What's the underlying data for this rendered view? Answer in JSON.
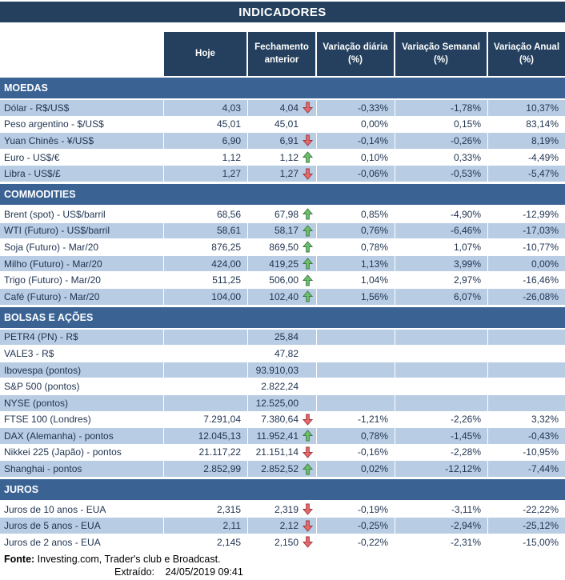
{
  "title": "INDICADORES",
  "columns": {
    "today": "Hoje",
    "prev": "Fechamento anterior",
    "daily": "Variação diária (%)",
    "weekly": "Variação Semanal (%)",
    "annual": "Variação Anual (%)"
  },
  "colors": {
    "header_navy": "#24405E",
    "section_blue": "#3A6394",
    "row_light_blue": "#B8CCE4",
    "up_green": "#6CBF6F",
    "up_green_border": "#3E7A40",
    "down_red": "#E4696D",
    "down_red_border": "#9C3A3C"
  },
  "sections": [
    {
      "name": "MOEDAS",
      "rows": [
        {
          "label": "Dólar - R$/US$",
          "today": "4,03",
          "prev": "4,04",
          "arrow": "down",
          "daily": "-0,33%",
          "weekly": "-1,78%",
          "annual": "10,37%"
        },
        {
          "label": "Peso argentino - $/US$",
          "today": "45,01",
          "prev": "45,01",
          "arrow": "none",
          "daily": "0,00%",
          "weekly": "0,15%",
          "annual": "83,14%"
        },
        {
          "label": "Yuan Chinês - ¥/US$",
          "today": "6,90",
          "prev": "6,91",
          "arrow": "down",
          "daily": "-0,14%",
          "weekly": "-0,26%",
          "annual": "8,19%"
        },
        {
          "label": "Euro - US$/€",
          "today": "1,12",
          "prev": "1,12",
          "arrow": "up",
          "daily": "0,10%",
          "weekly": "0,33%",
          "annual": "-4,49%"
        },
        {
          "label": "Libra - US$/£",
          "today": "1,27",
          "prev": "1,27",
          "arrow": "down",
          "daily": "-0,06%",
          "weekly": "-0,53%",
          "annual": "-5,47%"
        }
      ]
    },
    {
      "name": "COMMODITIES",
      "rows": [
        {
          "label": "Brent (spot) - US$/barril",
          "today": "68,56",
          "prev": "67,98",
          "arrow": "up",
          "daily": "0,85%",
          "weekly": "-4,90%",
          "annual": "-12,99%"
        },
        {
          "label": "WTI (Futuro) - US$/barril",
          "today": "58,61",
          "prev": "58,17",
          "arrow": "up",
          "daily": "0,76%",
          "weekly": "-6,46%",
          "annual": "-17,03%"
        },
        {
          "label": "Soja (Futuro) - Mar/20",
          "today": "876,25",
          "prev": "869,50",
          "arrow": "up",
          "daily": "0,78%",
          "weekly": "1,07%",
          "annual": "-10,77%"
        },
        {
          "label": "Milho (Futuro) - Mar/20",
          "today": "424,00",
          "prev": "419,25",
          "arrow": "up",
          "daily": "1,13%",
          "weekly": "3,99%",
          "annual": "0,00%"
        },
        {
          "label": "Trigo (Futuro) - Mar/20",
          "today": "511,25",
          "prev": "506,00",
          "arrow": "up",
          "daily": "1,04%",
          "weekly": "2,97%",
          "annual": "-16,46%"
        },
        {
          "label": "Café (Futuro) - Mar/20",
          "today": "104,00",
          "prev": "102,40",
          "arrow": "up",
          "daily": "1,56%",
          "weekly": "6,07%",
          "annual": "-26,08%"
        }
      ]
    },
    {
      "name": "BOLSAS E AÇÕES",
      "rows": [
        {
          "label": "PETR4 (PN) - R$",
          "today": "",
          "prev": "25,84",
          "arrow": "none",
          "daily": "",
          "weekly": "",
          "annual": ""
        },
        {
          "label": "VALE3 - R$",
          "today": "",
          "prev": "47,82",
          "arrow": "none",
          "daily": "",
          "weekly": "",
          "annual": ""
        },
        {
          "label": "Ibovespa (pontos)",
          "today": "",
          "prev": "93.910,03",
          "arrow": "none",
          "daily": "",
          "weekly": "",
          "annual": ""
        },
        {
          "label": "S&P 500 (pontos)",
          "today": "",
          "prev": "2.822,24",
          "arrow": "none",
          "daily": "",
          "weekly": "",
          "annual": ""
        },
        {
          "label": "NYSE (pontos)",
          "today": "",
          "prev": "12.525,00",
          "arrow": "none",
          "daily": "",
          "weekly": "",
          "annual": ""
        },
        {
          "label": "FTSE 100 (Londres)",
          "today": "7.291,04",
          "prev": "7.380,64",
          "arrow": "down",
          "daily": "-1,21%",
          "weekly": "-2,26%",
          "annual": "3,32%"
        },
        {
          "label": "DAX (Alemanha) - pontos",
          "today": "12.045,13",
          "prev": "11.952,41",
          "arrow": "up",
          "daily": "0,78%",
          "weekly": "-1,45%",
          "annual": "-0,43%"
        },
        {
          "label": "Nikkei 225 (Japão) - pontos",
          "today": "21.117,22",
          "prev": "21.151,14",
          "arrow": "down",
          "daily": "-0,16%",
          "weekly": "-2,28%",
          "annual": "-10,95%"
        },
        {
          "label": "Shanghai - pontos",
          "today": "2.852,99",
          "prev": "2.852,52",
          "arrow": "up",
          "daily": "0,02%",
          "weekly": "-12,12%",
          "annual": "-7,44%"
        }
      ]
    },
    {
      "name": "JUROS",
      "rows": [
        {
          "label": "Juros de 10 anos - EUA",
          "today": "2,315",
          "prev": "2,319",
          "arrow": "down",
          "daily": "-0,19%",
          "weekly": "-3,11%",
          "annual": "-22,22%"
        },
        {
          "label": "Juros de 5 anos - EUA",
          "today": "2,11",
          "prev": "2,12",
          "arrow": "down",
          "daily": "-0,25%",
          "weekly": "-2,94%",
          "annual": "-25,12%"
        },
        {
          "label": "Juros de 2 anos - EUA",
          "today": "2,145",
          "prev": "2,150",
          "arrow": "down",
          "daily": "-0,22%",
          "weekly": "-2,31%",
          "annual": "-15,00%"
        }
      ]
    }
  ],
  "footer": {
    "source_label": "Fonte:",
    "source_text": "Investing.com, Trader's club e Broadcast.",
    "extracted_label": "Extraído:",
    "extracted_datetime": "24/05/2019 09:41"
  }
}
